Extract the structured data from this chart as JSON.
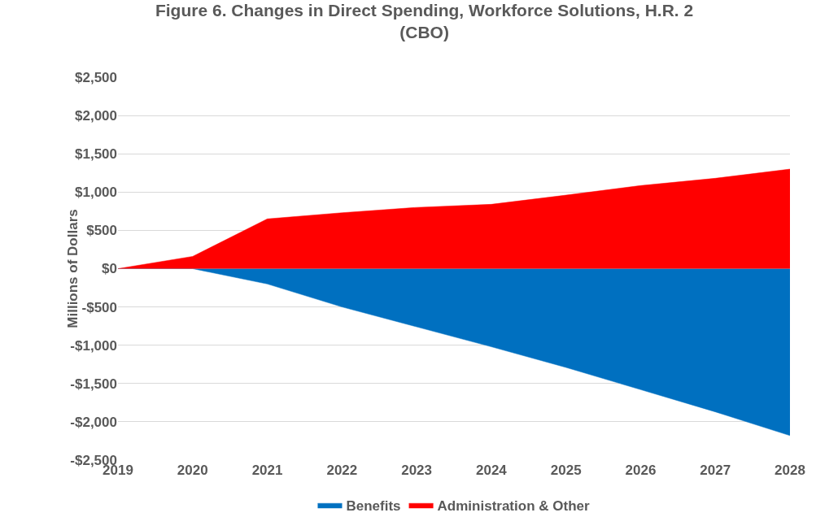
{
  "chart_data": {
    "type": "area",
    "title": "Figure 6. Changes in Direct Spending, Workforce Solutions, H.R. 2\n(CBO)",
    "ylabel": "Millions of Dollars",
    "x": [
      2019,
      2020,
      2021,
      2022,
      2023,
      2024,
      2025,
      2026,
      2027,
      2028
    ],
    "series": [
      {
        "name": "Benefits",
        "color": "#0070c0",
        "values": [
          0,
          0,
          -200,
          -500,
          -760,
          -1020,
          -1290,
          -1580,
          -1870,
          -2180
        ]
      },
      {
        "name": "Administration & Other",
        "color": "#ff0000",
        "values": [
          0,
          160,
          650,
          730,
          800,
          840,
          960,
          1085,
          1180,
          1300
        ]
      }
    ],
    "xlim": [
      2019,
      2028
    ],
    "xticks": [
      2019,
      2020,
      2021,
      2022,
      2023,
      2024,
      2025,
      2026,
      2027,
      2028
    ],
    "ylim": [
      -2500,
      2500
    ],
    "yticks": [
      {
        "value": -2500,
        "label": "-$2,500"
      },
      {
        "value": -2000,
        "label": "-$2,000"
      },
      {
        "value": -1500,
        "label": "-$1,500"
      },
      {
        "value": -1000,
        "label": "-$1,000"
      },
      {
        "value": -500,
        "label": "-$500"
      },
      {
        "value": 0,
        "label": "$0"
      },
      {
        "value": 500,
        "label": "$500"
      },
      {
        "value": 1000,
        "label": "$1,000"
      },
      {
        "value": 1500,
        "label": "$1,500"
      },
      {
        "value": 2000,
        "label": "$2,000"
      },
      {
        "value": 2500,
        "label": "$2,500"
      }
    ],
    "grid": "y",
    "legend": "bottom"
  }
}
